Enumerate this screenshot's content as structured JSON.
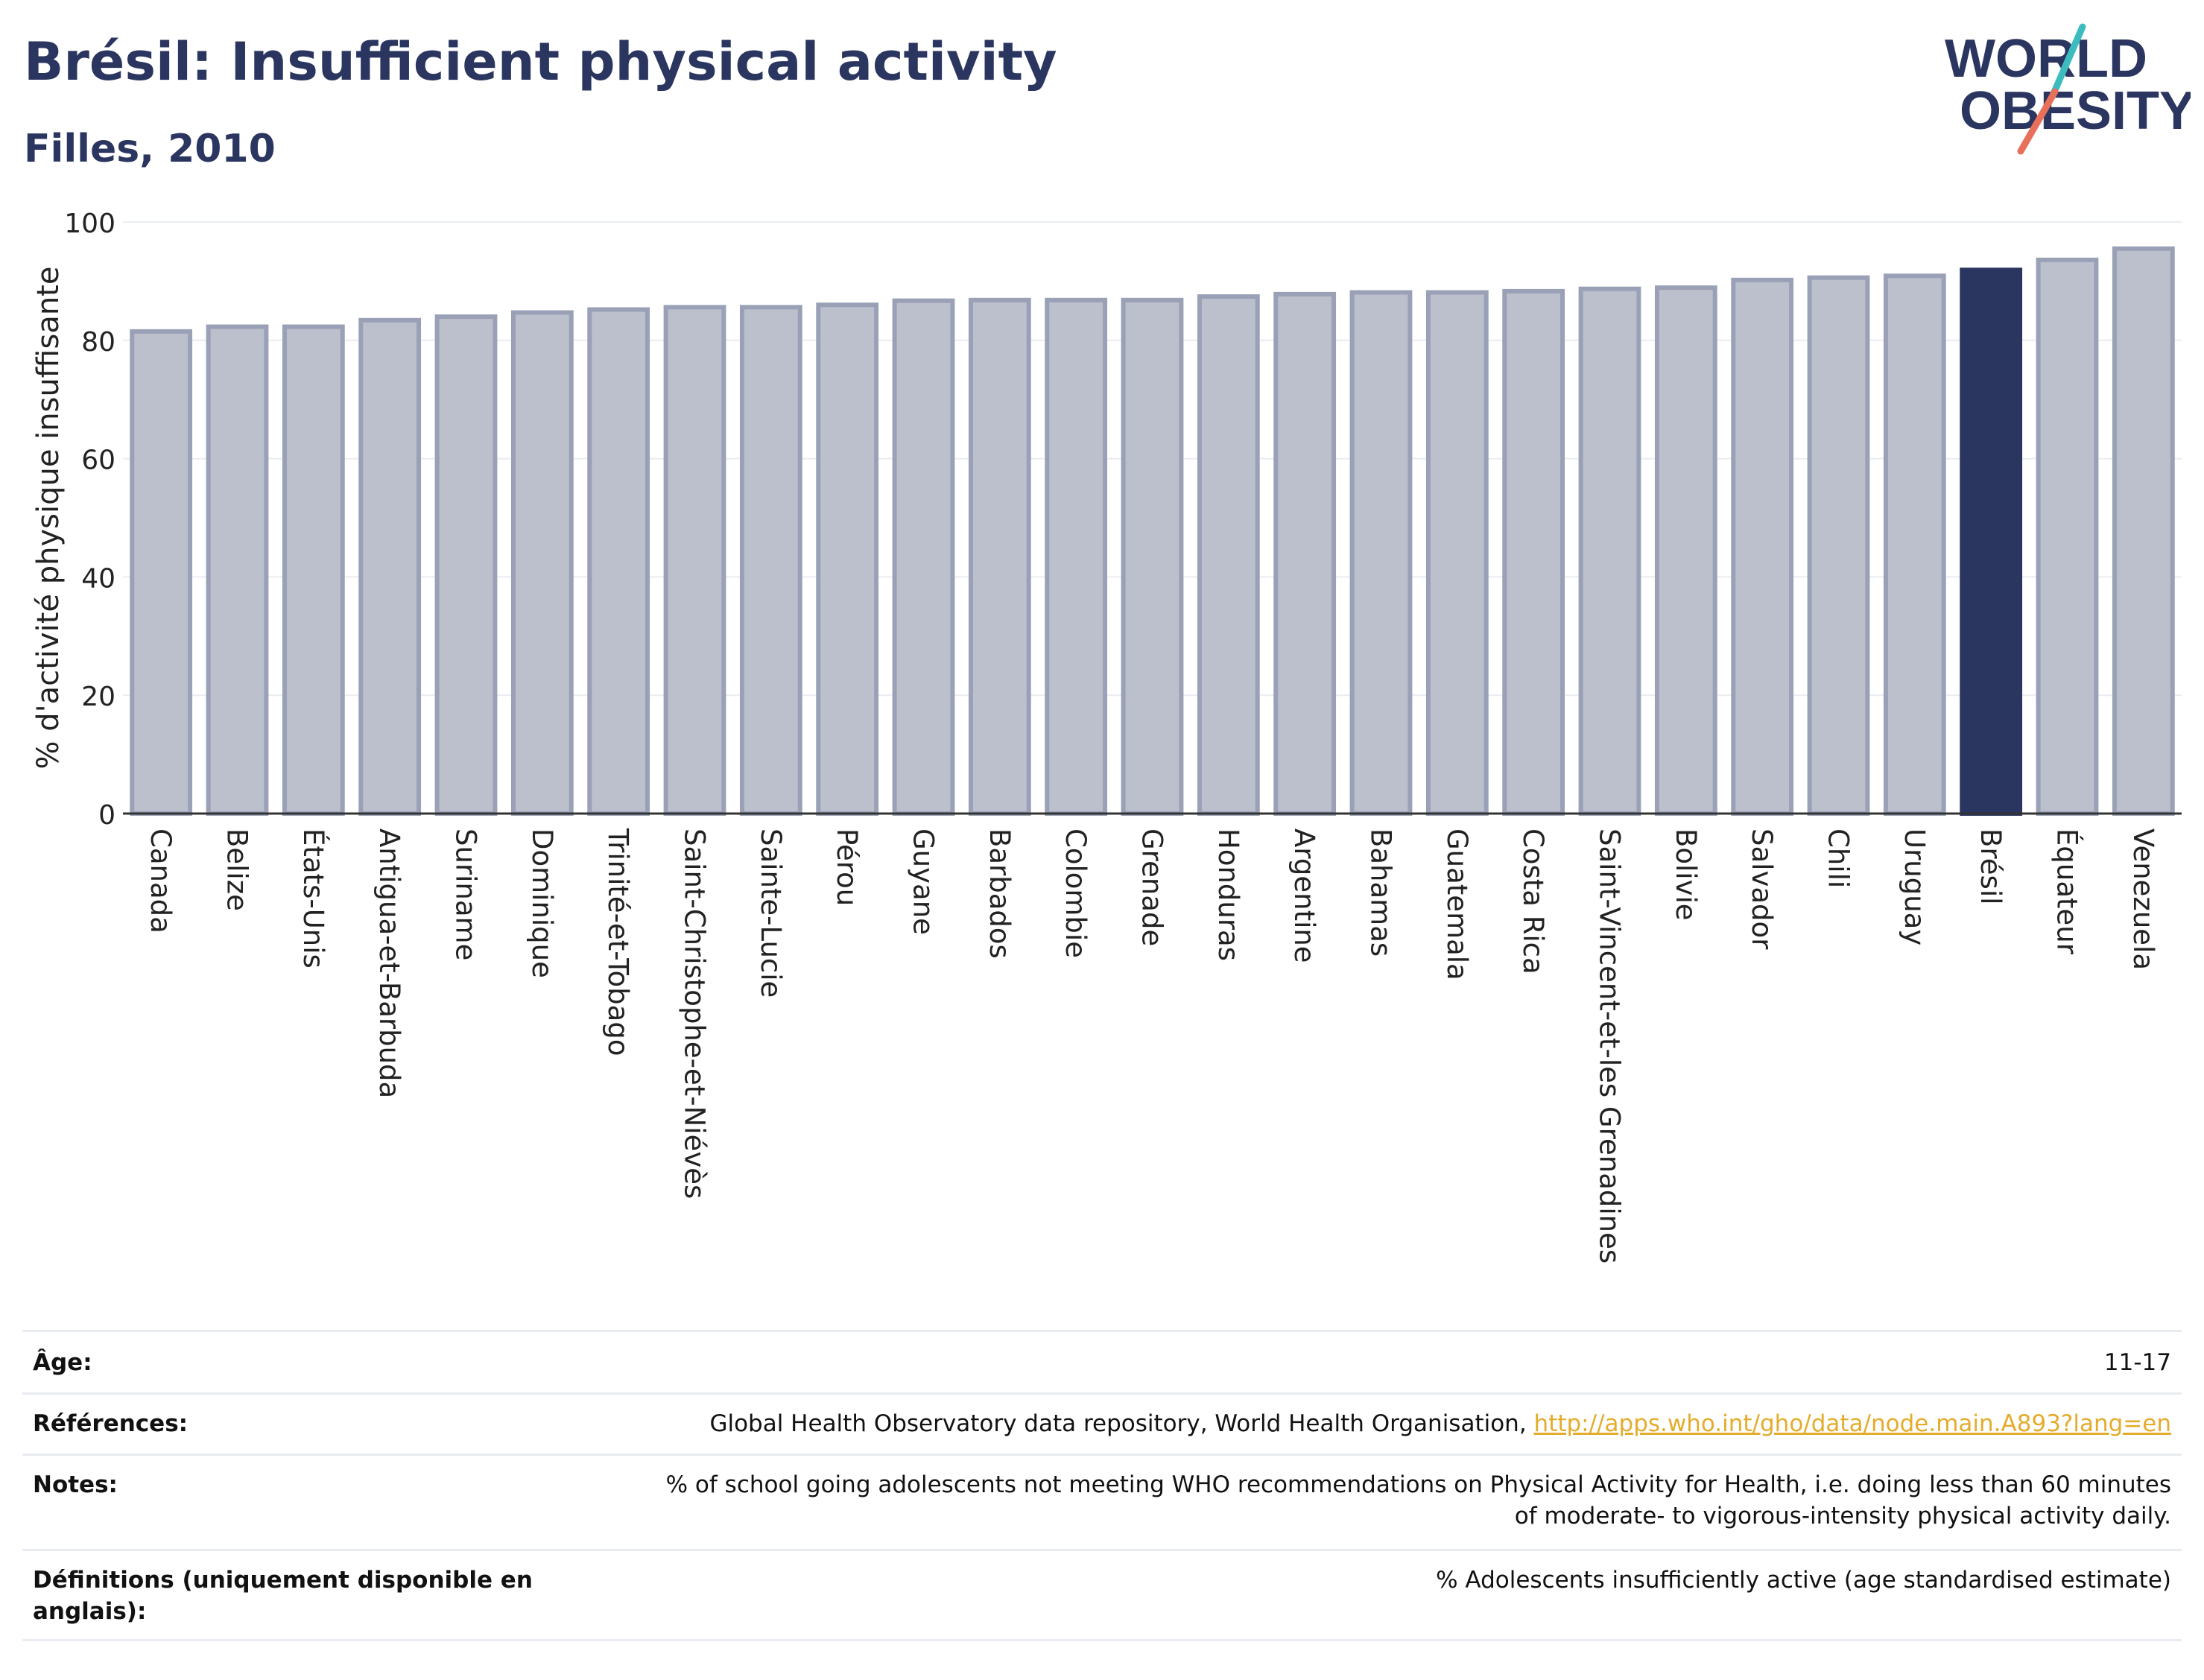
{
  "header": {
    "title": "Brésil: Insufficient physical activity",
    "subtitle": "Filles, 2010"
  },
  "logo": {
    "line1": "WORLD",
    "line2": "OBESITY"
  },
  "colors": {
    "highlight": "#2a3560",
    "bar_fill": "#bcc0cd",
    "bar_stroke": "#9aa0b6",
    "title": "#2a3560",
    "link": "#e4ac2c",
    "logo_teal": "#3dbcc0",
    "logo_coral": "#e8705a"
  },
  "chart_data": {
    "type": "bar",
    "ylabel": "% d'activité physique insuffisante",
    "ylim": [
      0,
      100
    ],
    "yticks": [
      0,
      20,
      40,
      60,
      80,
      100
    ],
    "grid": true,
    "highlight": "Brésil",
    "categories": [
      "Canada",
      "Belize",
      "États-Unis",
      "Antigua-et-Barbuda",
      "Suriname",
      "Dominique",
      "Trinité-et-Tobago",
      "Saint-Christophe-et-Niévès",
      "Sainte-Lucie",
      "Pérou",
      "Guyane",
      "Barbados",
      "Colombie",
      "Grenade",
      "Honduras",
      "Argentine",
      "Bahamas",
      "Guatemala",
      "Costa Rica",
      "Saint-Vincent-et-les Grenadines",
      "Bolivie",
      "Salvador",
      "Chili",
      "Uruguay",
      "Brésil",
      "Équateur",
      "Venezuela"
    ],
    "values": [
      81.5,
      82.3,
      82.3,
      83.4,
      84.0,
      84.7,
      85.2,
      85.6,
      85.6,
      86.0,
      86.7,
      86.8,
      86.8,
      86.8,
      87.4,
      87.8,
      88.1,
      88.1,
      88.3,
      88.7,
      88.9,
      90.2,
      90.6,
      90.9,
      91.9,
      93.6,
      95.5
    ]
  },
  "footer": {
    "rows": [
      {
        "label": "Âge:",
        "value": "11-17"
      },
      {
        "label": "Références:",
        "value": "Global Health Observatory data repository, World Health Organisation,",
        "link": "http://apps.who.int/gho/data/node.main.A893?lang=en"
      },
      {
        "label": "Notes:",
        "value": "% of school going adolescents not meeting WHO recommendations on Physical Activity for Health, i.e. doing less than 60 minutes of moderate- to vigorous-intensity physical activity daily."
      },
      {
        "label": "Définitions (uniquement disponible en anglais):",
        "value": "% Adolescents insufficiently active (age standardised estimate)"
      }
    ]
  }
}
